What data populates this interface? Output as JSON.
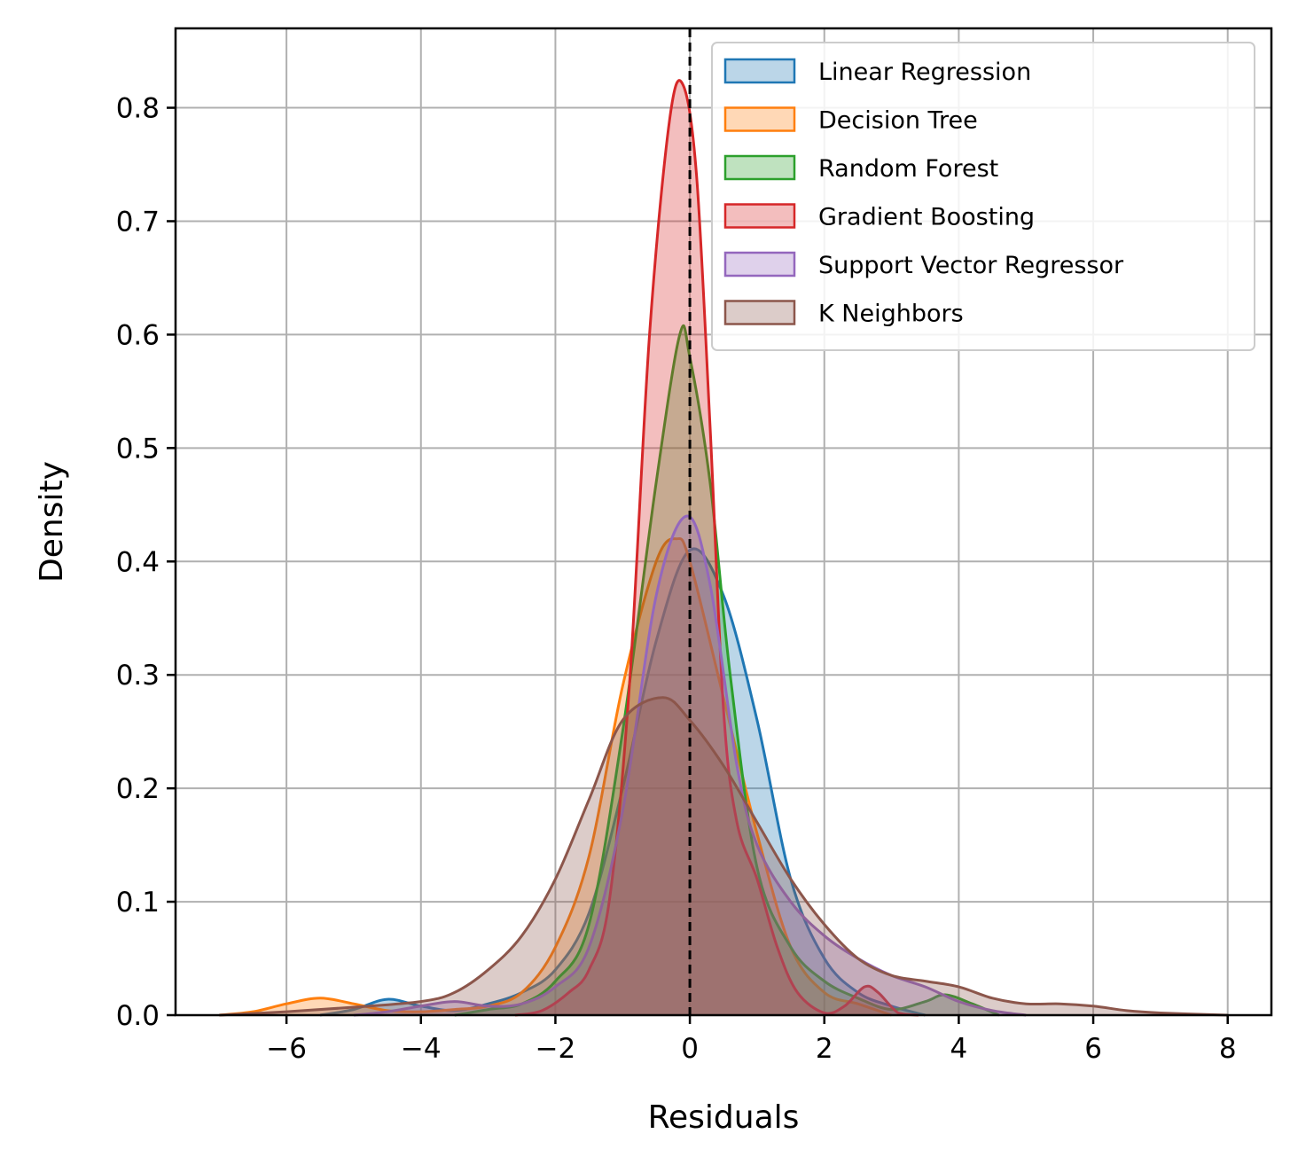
{
  "chart_data": {
    "type": "area",
    "xlabel": "Residuals",
    "ylabel": "Density",
    "xlim": [
      -7.65,
      8.65
    ],
    "ylim": [
      0,
      0.87
    ],
    "xticks": [
      -6,
      -4,
      -2,
      0,
      2,
      4,
      6,
      8
    ],
    "xtick_labels": [
      "−6",
      "−4",
      "−2",
      "0",
      "2",
      "4",
      "6",
      "8"
    ],
    "yticks": [
      0.0,
      0.1,
      0.2,
      0.3,
      0.4,
      0.5,
      0.6,
      0.7,
      0.8
    ],
    "ytick_labels": [
      "0.0",
      "0.1",
      "0.2",
      "0.3",
      "0.4",
      "0.5",
      "0.6",
      "0.7",
      "0.8"
    ],
    "grid": true,
    "legend_position": "top-right",
    "reference_line": {
      "x": 0,
      "style": "dashed",
      "color": "#000000"
    },
    "series": [
      {
        "name": "Linear Regression",
        "color": "#1f77b4",
        "points": [
          [
            -5.5,
            0.0
          ],
          [
            -5.0,
            0.005
          ],
          [
            -4.5,
            0.014
          ],
          [
            -4.0,
            0.008
          ],
          [
            -3.5,
            0.004
          ],
          [
            -3.0,
            0.01
          ],
          [
            -2.5,
            0.02
          ],
          [
            -2.0,
            0.04
          ],
          [
            -1.5,
            0.09
          ],
          [
            -1.0,
            0.2
          ],
          [
            -0.5,
            0.33
          ],
          [
            0.0,
            0.41
          ],
          [
            0.5,
            0.37
          ],
          [
            1.0,
            0.26
          ],
          [
            1.5,
            0.12
          ],
          [
            2.0,
            0.05
          ],
          [
            2.5,
            0.02
          ],
          [
            3.0,
            0.008
          ],
          [
            3.5,
            0.0
          ]
        ]
      },
      {
        "name": "Decision Tree",
        "color": "#ff7f0e",
        "points": [
          [
            -7.0,
            0.0
          ],
          [
            -6.5,
            0.003
          ],
          [
            -6.0,
            0.01
          ],
          [
            -5.5,
            0.015
          ],
          [
            -5.0,
            0.01
          ],
          [
            -4.5,
            0.004
          ],
          [
            -4.0,
            0.003
          ],
          [
            -3.5,
            0.005
          ],
          [
            -3.0,
            0.008
          ],
          [
            -2.5,
            0.02
          ],
          [
            -2.0,
            0.06
          ],
          [
            -1.5,
            0.14
          ],
          [
            -1.0,
            0.29
          ],
          [
            -0.5,
            0.4
          ],
          [
            -0.2,
            0.42
          ],
          [
            0.0,
            0.4
          ],
          [
            0.5,
            0.28
          ],
          [
            1.0,
            0.16
          ],
          [
            1.5,
            0.06
          ],
          [
            2.0,
            0.02
          ],
          [
            2.5,
            0.01
          ],
          [
            3.0,
            0.0
          ]
        ]
      },
      {
        "name": "Random Forest",
        "color": "#2ca02c",
        "points": [
          [
            -3.5,
            0.0
          ],
          [
            -3.0,
            0.005
          ],
          [
            -2.5,
            0.01
          ],
          [
            -2.0,
            0.03
          ],
          [
            -1.5,
            0.08
          ],
          [
            -1.0,
            0.25
          ],
          [
            -0.5,
            0.47
          ],
          [
            -0.15,
            0.6
          ],
          [
            0.0,
            0.58
          ],
          [
            0.3,
            0.47
          ],
          [
            0.6,
            0.3
          ],
          [
            1.0,
            0.13
          ],
          [
            1.5,
            0.06
          ],
          [
            2.0,
            0.03
          ],
          [
            2.5,
            0.015
          ],
          [
            3.0,
            0.005
          ],
          [
            3.5,
            0.012
          ],
          [
            3.8,
            0.018
          ],
          [
            4.2,
            0.01
          ],
          [
            4.6,
            0.0
          ]
        ]
      },
      {
        "name": "Gradient Boosting",
        "color": "#d62728",
        "points": [
          [
            -2.6,
            0.0
          ],
          [
            -2.2,
            0.004
          ],
          [
            -1.8,
            0.02
          ],
          [
            -1.5,
            0.04
          ],
          [
            -1.2,
            0.1
          ],
          [
            -0.9,
            0.29
          ],
          [
            -0.6,
            0.6
          ],
          [
            -0.3,
            0.79
          ],
          [
            -0.1,
            0.82
          ],
          [
            0.1,
            0.74
          ],
          [
            0.3,
            0.52
          ],
          [
            0.5,
            0.27
          ],
          [
            0.7,
            0.17
          ],
          [
            1.0,
            0.12
          ],
          [
            1.3,
            0.06
          ],
          [
            1.6,
            0.02
          ],
          [
            2.0,
            0.002
          ],
          [
            2.3,
            0.008
          ],
          [
            2.6,
            0.025
          ],
          [
            2.8,
            0.02
          ],
          [
            3.1,
            0.002
          ],
          [
            3.4,
            0.0
          ]
        ]
      },
      {
        "name": "Support Vector Regressor",
        "color": "#9467bd",
        "points": [
          [
            -5.0,
            0.0
          ],
          [
            -4.5,
            0.003
          ],
          [
            -4.0,
            0.008
          ],
          [
            -3.5,
            0.012
          ],
          [
            -3.0,
            0.008
          ],
          [
            -2.5,
            0.01
          ],
          [
            -2.0,
            0.025
          ],
          [
            -1.5,
            0.06
          ],
          [
            -1.0,
            0.18
          ],
          [
            -0.5,
            0.37
          ],
          [
            -0.05,
            0.44
          ],
          [
            0.3,
            0.38
          ],
          [
            0.7,
            0.22
          ],
          [
            1.0,
            0.15
          ],
          [
            1.5,
            0.1
          ],
          [
            2.0,
            0.07
          ],
          [
            2.5,
            0.05
          ],
          [
            3.0,
            0.035
          ],
          [
            3.5,
            0.025
          ],
          [
            4.0,
            0.012
          ],
          [
            4.5,
            0.004
          ],
          [
            5.0,
            0.0
          ]
        ]
      },
      {
        "name": "K Neighbors",
        "color": "#8c564b",
        "points": [
          [
            -7.0,
            0.0
          ],
          [
            -6.0,
            0.003
          ],
          [
            -5.0,
            0.007
          ],
          [
            -4.0,
            0.012
          ],
          [
            -3.5,
            0.02
          ],
          [
            -3.0,
            0.04
          ],
          [
            -2.5,
            0.07
          ],
          [
            -2.0,
            0.12
          ],
          [
            -1.5,
            0.19
          ],
          [
            -1.0,
            0.26
          ],
          [
            -0.4,
            0.28
          ],
          [
            0.0,
            0.26
          ],
          [
            0.5,
            0.22
          ],
          [
            1.0,
            0.17
          ],
          [
            1.5,
            0.12
          ],
          [
            2.0,
            0.08
          ],
          [
            2.5,
            0.05
          ],
          [
            3.0,
            0.035
          ],
          [
            3.5,
            0.03
          ],
          [
            4.0,
            0.025
          ],
          [
            4.5,
            0.015
          ],
          [
            5.0,
            0.01
          ],
          [
            5.5,
            0.01
          ],
          [
            6.0,
            0.008
          ],
          [
            6.5,
            0.004
          ],
          [
            7.0,
            0.002
          ],
          [
            8.0,
            0.0
          ]
        ]
      }
    ]
  }
}
